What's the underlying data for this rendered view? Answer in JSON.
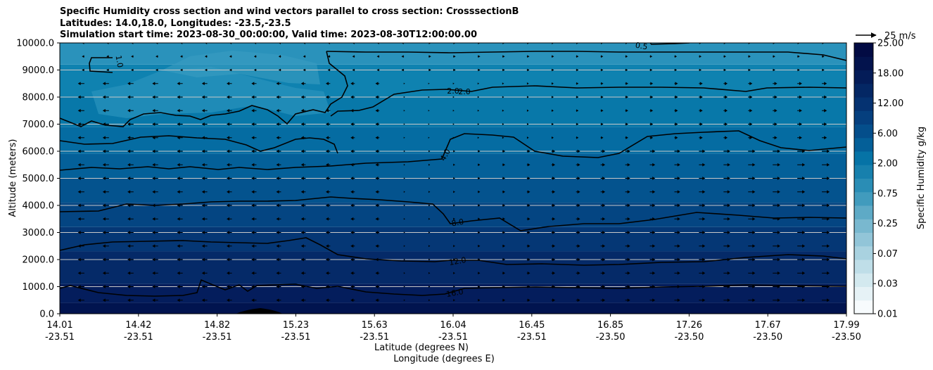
{
  "chart_data": {
    "type": "contour",
    "title": [
      "Specific Humidity cross section and wind vectors parallel to cross section: CrosssectionB",
      "Latitudes: 14.0,18.0, Longitudes: -23.5,-23.5",
      "Simulation start time: 2023-08-30_00:00:00, Valid time: 2023-08-30T12:00:00.00"
    ],
    "ylabel": "Altitude (meters)",
    "xlabel_lat": "Latitude (degrees N)",
    "xlabel_lon": "Longitude (degrees E)",
    "ylim": [
      0,
      10000
    ],
    "y_ticks": [
      "0.0",
      "1000.0",
      "2000.0",
      "3000.0",
      "4000.0",
      "5000.0",
      "6000.0",
      "7000.0",
      "8000.0",
      "9000.0",
      "10000.0"
    ],
    "y_tick_values": [
      0,
      1000,
      2000,
      3000,
      4000,
      5000,
      6000,
      7000,
      8000,
      9000,
      10000
    ],
    "x_ticks": [
      {
        "lat": "14.01",
        "lon": "-23.51"
      },
      {
        "lat": "14.42",
        "lon": "-23.51"
      },
      {
        "lat": "14.82",
        "lon": "-23.51"
      },
      {
        "lat": "15.23",
        "lon": "-23.51"
      },
      {
        "lat": "15.63",
        "lon": "-23.51"
      },
      {
        "lat": "16.04",
        "lon": "-23.51"
      },
      {
        "lat": "16.45",
        "lon": "-23.51"
      },
      {
        "lat": "16.85",
        "lon": "-23.50"
      },
      {
        "lat": "17.26",
        "lon": "-23.50"
      },
      {
        "lat": "17.67",
        "lon": "-23.50"
      },
      {
        "lat": "17.99",
        "lon": "-23.50"
      }
    ],
    "grid": "horizontal",
    "colorbar": {
      "label": "Specific Humidity g/kg",
      "tick_labels": [
        "0.01",
        "0.03",
        "0.07",
        "0.25",
        "0.75",
        "2.00",
        "6.00",
        "12.00",
        "18.00",
        "25.00"
      ],
      "colors": [
        "#f7fbfd",
        "#e6f2f6",
        "#d3e9ef",
        "#bfdee8",
        "#a9d2e0",
        "#92c5d8",
        "#79b8cf",
        "#5eaac6",
        "#419bbd",
        "#2a8db5",
        "#1780ad",
        "#0673a6",
        "#045f98",
        "#044e8b",
        "#053f7e",
        "#053271",
        "#042764",
        "#041c58",
        "#03134d",
        "#020b43"
      ],
      "colormap": "blue sequential"
    },
    "contour_levels": [
      {
        "label": "1.0",
        "altitude_m": 9100
      },
      {
        "label": "2.0",
        "altitude_m": 8200
      },
      {
        "label": "4.0",
        "altitude_m": 6100
      },
      {
        "label": "8.0",
        "altitude_m": 3400
      },
      {
        "label": "12.0",
        "altitude_m": 2000
      },
      {
        "label": "16.0",
        "altitude_m": 800
      },
      {
        "label": "0.5",
        "altitude_m": 9900
      }
    ],
    "contour_label_texts": [
      "1.0",
      "2.0",
      "2.0",
      "4.0",
      "8.0",
      "12.0",
      "16.0",
      "0.5"
    ],
    "wind_reference": {
      "label": "25 m/s"
    },
    "wind_pattern": "weak westward (leftward) flow on the southern half, eastward (rightward) flow increasing toward the north in the lower and middle troposphere"
  }
}
